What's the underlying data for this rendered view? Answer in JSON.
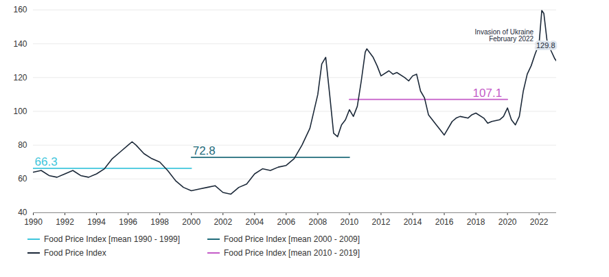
{
  "chart_data": {
    "type": "line",
    "xlim": [
      1990,
      2023.1
    ],
    "xticks": [
      1990,
      1992,
      1994,
      1996,
      1998,
      2000,
      2002,
      2004,
      2006,
      2008,
      2010,
      2012,
      2014,
      2016,
      2018,
      2020,
      2022
    ],
    "ylim": [
      40,
      160
    ],
    "yticks": [
      40,
      60,
      80,
      100,
      120,
      140,
      160
    ],
    "grid": true,
    "series": [
      {
        "name": "Food Price Index [mean 1990 - 1999]",
        "color": "#3ec6dc",
        "data_labels": true,
        "x": [
          1990,
          2000
        ],
        "values": [
          66.3,
          66.3
        ]
      },
      {
        "name": "Food Price Index [mean 2000 - 2009]",
        "color": "#1f6b7a",
        "data_labels": true,
        "x": [
          2000,
          2010
        ],
        "values": [
          72.8,
          72.8
        ]
      },
      {
        "name": "Food Price Index [mean 2010 - 2019]",
        "color": "#c45bc8",
        "data_labels": true,
        "x": [
          2010,
          2020
        ],
        "values": [
          107.1,
          107.1
        ]
      },
      {
        "name": "Food Price Index",
        "color": "#1b2838",
        "x": [
          1990,
          1990.5,
          1991,
          1991.5,
          1992,
          1992.5,
          1993,
          1993.5,
          1994,
          1994.5,
          1995,
          1995.5,
          1996,
          1996.25,
          1996.5,
          1997,
          1997.5,
          1998,
          1998.5,
          1999,
          1999.5,
          2000,
          2000.5,
          2001,
          2001.5,
          2002,
          2002.5,
          2003,
          2003.5,
          2004,
          2004.5,
          2005,
          2005.5,
          2006,
          2006.5,
          2007,
          2007.5,
          2008,
          2008.25,
          2008.5,
          2008.75,
          2009,
          2009.25,
          2009.5,
          2009.75,
          2010,
          2010.25,
          2010.5,
          2010.75,
          2011,
          2011.1,
          2011.5,
          2011.75,
          2012,
          2012.5,
          2012.75,
          2013,
          2013.5,
          2013.75,
          2014,
          2014.25,
          2014.5,
          2014.75,
          2015,
          2015.5,
          2015.75,
          2016,
          2016.5,
          2016.75,
          2017,
          2017.5,
          2017.75,
          2018,
          2018.5,
          2018.75,
          2019,
          2019.5,
          2019.75,
          2020,
          2020.25,
          2020.5,
          2020.75,
          2021,
          2021.25,
          2021.5,
          2021.75,
          2022,
          2022.17,
          2022.3,
          2022.5,
          2022.75,
          2023,
          2023.1
        ],
        "values": [
          64,
          65,
          62,
          61,
          63,
          65,
          62,
          61,
          63,
          66,
          72,
          76,
          80,
          82,
          80,
          75,
          72,
          70,
          65,
          59,
          55,
          53,
          54,
          55,
          56,
          52,
          51,
          55,
          57,
          63,
          66,
          65,
          67,
          68,
          72,
          80,
          90,
          110,
          128,
          132,
          110,
          87,
          85,
          92,
          95,
          101,
          97,
          103,
          118,
          135,
          137,
          132,
          127,
          121,
          124,
          122,
          123,
          120,
          118,
          121,
          122,
          112,
          108,
          98,
          92,
          89,
          86,
          94,
          96,
          97,
          96,
          98,
          99,
          96,
          93,
          94,
          95,
          97,
          102,
          95,
          92,
          97,
          112,
          122,
          127,
          134,
          140,
          159.7,
          158,
          142,
          136,
          131,
          129.8
        ]
      }
    ],
    "annotations": [
      {
        "text": "Invasion of Ukraine\nFebruary 2022",
        "x": 2022,
        "y": 140
      },
      {
        "text": "129.8",
        "x": 2023.1,
        "y": 129.8
      }
    ]
  }
}
